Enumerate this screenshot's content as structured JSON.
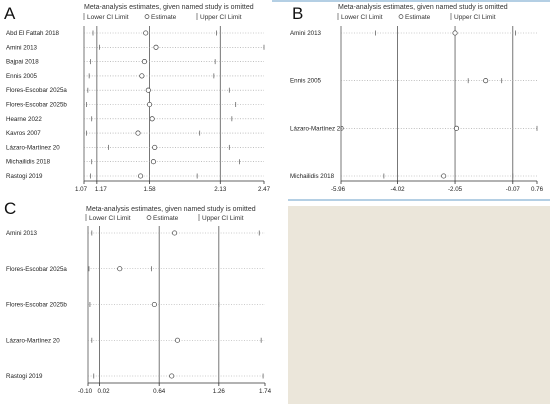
{
  "chart_data": [
    {
      "id": "A",
      "type": "forest",
      "panel_label": "A",
      "title": "Meta-analysis estimates, given named study is omitted",
      "legend": [
        "Lower CI Limit",
        "Estimate",
        "Upper CI Limit"
      ],
      "ticks": [
        1.07,
        1.17,
        1.58,
        2.13,
        2.47
      ],
      "tick_labels": [
        "1.07",
        "1.17",
        "1.58",
        "2.13",
        "2.47"
      ],
      "ref_lines": [
        1.17,
        1.58,
        2.13
      ],
      "xlim": [
        1.07,
        2.47
      ],
      "studies": [
        {
          "name": "Abd El Fattah 2018",
          "lower": 1.14,
          "estimate": 1.55,
          "upper": 2.1
        },
        {
          "name": "Amini 2013",
          "lower": 1.19,
          "estimate": 1.63,
          "upper": 2.47
        },
        {
          "name": "Bajpai 2018",
          "lower": 1.12,
          "estimate": 1.54,
          "upper": 2.09
        },
        {
          "name": "Ennis 2005",
          "lower": 1.11,
          "estimate": 1.52,
          "upper": 2.08
        },
        {
          "name": "Flores-Escobar 2025a",
          "lower": 1.1,
          "estimate": 1.57,
          "upper": 2.2
        },
        {
          "name": "Flores-Escobar 2025b",
          "lower": 1.09,
          "estimate": 1.58,
          "upper": 2.25
        },
        {
          "name": "Hearne 2022",
          "lower": 1.13,
          "estimate": 1.6,
          "upper": 2.22
        },
        {
          "name": "Kavros 2007",
          "lower": 1.09,
          "estimate": 1.49,
          "upper": 1.97
        },
        {
          "name": "Lázaro-Martínez 20",
          "lower": 1.26,
          "estimate": 1.62,
          "upper": 2.2
        },
        {
          "name": "Michailidis 2018",
          "lower": 1.13,
          "estimate": 1.61,
          "upper": 2.28
        },
        {
          "name": "Rastogi 2019",
          "lower": 1.12,
          "estimate": 1.51,
          "upper": 1.95
        }
      ]
    },
    {
      "id": "B",
      "type": "forest",
      "panel_label": "B",
      "title": "Meta-analysis estimates, given named study is omitted",
      "legend": [
        "Lower CI Limit",
        "Estimate",
        "Upper CI Limit"
      ],
      "ticks": [
        -5.96,
        -4.02,
        -2.05,
        -0.07,
        0.76
      ],
      "tick_labels": [
        "-5.96",
        "-4.02",
        "-2.05",
        "-0.07",
        "0.76"
      ],
      "ref_lines": [
        -4.02,
        -2.05,
        -0.07
      ],
      "xlim": [
        -5.96,
        0.76
      ],
      "studies": [
        {
          "name": "Amini 2013",
          "lower": -4.78,
          "estimate": -2.05,
          "upper": 0.02
        },
        {
          "name": "Ennis 2005",
          "lower": -1.6,
          "estimate": -1.0,
          "upper": -0.45
        },
        {
          "name": "Lázaro-Martínez 20",
          "lower": -5.96,
          "estimate": -2.0,
          "upper": 0.76
        },
        {
          "name": "Michailidis 2018",
          "lower": -4.49,
          "estimate": -2.44,
          "upper": -0.07
        }
      ]
    },
    {
      "id": "C",
      "type": "forest",
      "panel_label": "C",
      "title": "Meta-analysis estimates, given named study is omitted",
      "legend": [
        "Lower CI Limit",
        "Estimate",
        "Upper CI Limit"
      ],
      "ticks": [
        -0.1,
        0.02,
        0.64,
        1.26,
        1.74
      ],
      "tick_labels": [
        "-0.10",
        "0.02",
        "0.64",
        "1.26",
        "1.74"
      ],
      "ref_lines": [
        0.02,
        0.64,
        1.26
      ],
      "xlim": [
        -0.1,
        1.74
      ],
      "studies": [
        {
          "name": "Amini 2013",
          "lower": -0.06,
          "estimate": 0.8,
          "upper": 1.68
        },
        {
          "name": "Flores-Escobar 2025a",
          "lower": -0.09,
          "estimate": 0.23,
          "upper": 0.56
        },
        {
          "name": "Flores-Escobar 2025b",
          "lower": -0.08,
          "estimate": 0.59,
          "upper": 1.26
        },
        {
          "name": "Lázaro-Martínez 20",
          "lower": -0.06,
          "estimate": 0.83,
          "upper": 1.7
        },
        {
          "name": "Rastogi 2019",
          "lower": -0.04,
          "estimate": 0.77,
          "upper": 1.72
        }
      ]
    }
  ],
  "colors": {
    "placeholder_panel": "#ebe6da",
    "divider": "#6a9fca",
    "ref_line": "#555555",
    "ci_line": "#999999"
  }
}
